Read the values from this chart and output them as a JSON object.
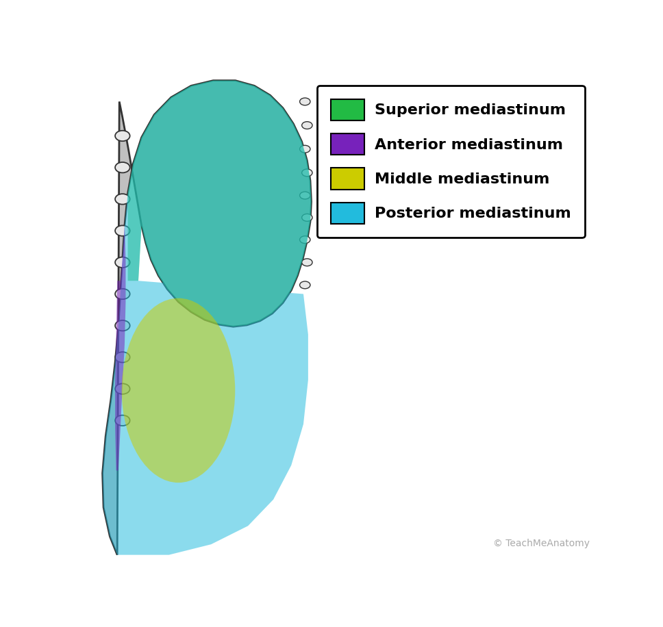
{
  "legend_entries": [
    {
      "label": "Superior mediastinum",
      "color": "#22bb44"
    },
    {
      "label": "Anterior mediastinum",
      "color": "#7722bb"
    },
    {
      "label": "Middle mediastinum",
      "color": "#cccc00"
    },
    {
      "label": "Posterior mediastinum",
      "color": "#22bbdd"
    }
  ],
  "superior_color": "#22bb44",
  "anterior_color": "#7722bb",
  "middle_color": "#cccc00",
  "posterior_color": "#22bbdd",
  "alpha": 0.52,
  "watermark_text": "© TeachMeAnatomy",
  "bg_color": "#ffffff",
  "legend_fontsize": 16,
  "watermark_fontsize": 10,
  "body_color": "#c0c0c0",
  "body_edge_color": "#333333",
  "rib_face_color": "#e8e8e8",
  "rib_edge_color": "#333333"
}
